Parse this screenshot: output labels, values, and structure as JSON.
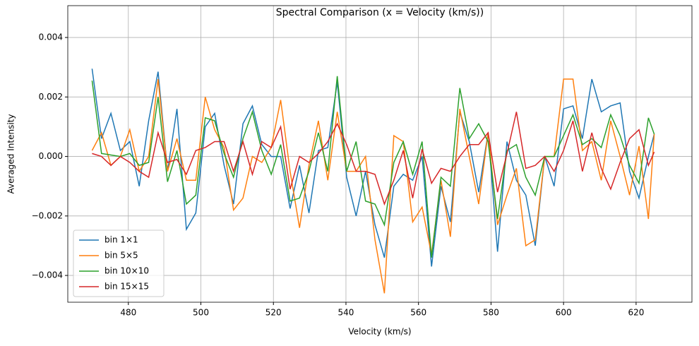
{
  "chart_data": {
    "type": "line",
    "title": "Spectral Comparison (x = Velocity (km/s))",
    "xlabel": "Velocity (km/s)",
    "ylabel": "Averaged Intensity",
    "x": [
      470,
      472.6,
      475.2,
      477.8,
      480.4,
      483,
      485.6,
      488.2,
      490.8,
      493.4,
      496,
      498.6,
      501.2,
      503.8,
      506.4,
      509,
      511.6,
      514.2,
      516.8,
      519.4,
      522,
      524.6,
      527.2,
      529.8,
      532.4,
      535,
      537.6,
      540.2,
      542.8,
      545.4,
      548,
      550.6,
      553.2,
      555.8,
      558.4,
      561,
      563.6,
      566.2,
      568.8,
      571.4,
      574,
      576.6,
      579.2,
      581.8,
      584.4,
      587,
      589.6,
      592.2,
      594.8,
      597.4,
      600,
      602.6,
      605.2,
      607.8,
      610.4,
      613,
      615.6,
      618.2,
      620.8,
      623.4,
      625
    ],
    "series": [
      {
        "name": "bin 1×1",
        "color": "#1f77b4",
        "values": [
          0.00295,
          0.0006,
          0.00145,
          0.0002,
          0.0005,
          -0.001,
          0.0012,
          0.00285,
          -0.0005,
          0.0016,
          -0.00245,
          -0.0019,
          0.001,
          0.00145,
          -0.0003,
          -0.0016,
          0.0011,
          0.0017,
          0.0004,
          0.0,
          0.0,
          -0.00175,
          -0.0003,
          -0.0019,
          0.0002,
          0.0003,
          0.0025,
          -0.0007,
          -0.002,
          -0.0005,
          -0.0023,
          -0.0034,
          -0.001,
          -0.0006,
          -0.0008,
          0.0,
          -0.0037,
          -0.001,
          -0.0022,
          0.0015,
          0.0005,
          -0.0012,
          0.0008,
          -0.0032,
          0.0005,
          -0.0008,
          -0.0013,
          -0.003,
          0.0,
          -0.001,
          0.0016,
          0.0017,
          0.0006,
          0.0026,
          0.0015,
          0.0017,
          0.0018,
          -0.0005,
          -0.0014,
          0.0,
          0.00075
        ]
      },
      {
        "name": "bin 5×5",
        "color": "#ff7f0e",
        "values": [
          0.0002,
          0.0008,
          -0.0003,
          0.0,
          0.0009,
          -0.0005,
          0.0,
          0.0026,
          -0.0005,
          0.0006,
          -0.0008,
          -0.0008,
          0.002,
          0.0009,
          0.0003,
          -0.0018,
          -0.0014,
          0.0,
          -0.0002,
          0.0003,
          0.0019,
          -0.0005,
          -0.0024,
          -0.0003,
          0.0012,
          -0.0008,
          0.0015,
          -0.0005,
          -0.0005,
          0.0,
          -0.0028,
          -0.0046,
          0.0007,
          0.0005,
          -0.0022,
          -0.0017,
          -0.0033,
          -0.0008,
          -0.0027,
          0.0016,
          0.0,
          -0.0016,
          0.0008,
          -0.0023,
          -0.0013,
          -0.0004,
          -0.003,
          -0.0028,
          0.0,
          0.0,
          0.0026,
          0.0026,
          0.0002,
          0.0005,
          -0.0008,
          0.0012,
          0.0,
          -0.0013,
          0.00035,
          -0.0021,
          0.00075
        ]
      },
      {
        "name": "bin 10×10",
        "color": "#2ca02c",
        "values": [
          0.00255,
          0.0001,
          5e-05,
          0.0,
          0.0001,
          -0.0003,
          -0.0002,
          0.002,
          -0.00085,
          0.0002,
          -0.0016,
          -0.0013,
          0.0013,
          0.0012,
          0.0001,
          -0.0007,
          0.0006,
          0.0015,
          0.0002,
          -0.0006,
          0.0004,
          -0.0015,
          -0.0014,
          -0.0005,
          0.0008,
          -0.0005,
          0.0027,
          -0.0005,
          0.0005,
          -0.0015,
          -0.0016,
          -0.0023,
          -0.0002,
          0.0005,
          -0.0006,
          0.0005,
          -0.0034,
          -0.0007,
          -0.001,
          0.0023,
          0.0006,
          0.0011,
          0.0005,
          -0.0021,
          0.0002,
          0.0004,
          -0.0007,
          -0.0013,
          0.0,
          0.0,
          0.0007,
          0.0014,
          0.0004,
          0.0006,
          0.0003,
          0.0014,
          0.0007,
          -0.0003,
          -0.0009,
          0.0013,
          0.00075
        ]
      },
      {
        "name": "bin 15×15",
        "color": "#d62728",
        "values": [
          0.0001,
          0.0,
          -0.0003,
          0.0,
          -0.0002,
          -0.0005,
          -0.0007,
          0.0008,
          -0.0002,
          -0.0001,
          -0.0006,
          0.0002,
          0.0003,
          0.0005,
          0.0005,
          -0.0005,
          0.0005,
          -0.0006,
          0.0005,
          0.0003,
          0.001,
          -0.0011,
          0.0,
          -0.0002,
          0.0001,
          0.0005,
          0.0011,
          0.0004,
          -0.0005,
          -0.0005,
          -0.0006,
          -0.0016,
          -0.0008,
          0.0002,
          -0.0014,
          0.00025,
          -0.0009,
          -0.0004,
          -0.0005,
          0.0,
          0.0004,
          0.0004,
          0.0008,
          -0.0012,
          0.0001,
          0.0015,
          -0.0004,
          -0.0003,
          0.0,
          -0.0005,
          0.0002,
          0.0012,
          -0.0005,
          0.0008,
          -0.0004,
          -0.0011,
          -0.0002,
          0.0006,
          0.0009,
          -0.0003,
          0.00015
        ]
      }
    ],
    "xlim": [
      463.3,
      635.4
    ],
    "xticks": [
      480,
      500,
      520,
      540,
      560,
      580,
      600,
      620
    ],
    "ylim": [
      -0.0049,
      0.00507
    ],
    "yticks": [
      {
        "value": -0.004,
        "label": "−0.004"
      },
      {
        "value": -0.002,
        "label": "−0.002"
      },
      {
        "value": 0,
        "label": "0.000"
      },
      0.002,
      0.004
    ],
    "grid": true,
    "legend": "lower left"
  }
}
